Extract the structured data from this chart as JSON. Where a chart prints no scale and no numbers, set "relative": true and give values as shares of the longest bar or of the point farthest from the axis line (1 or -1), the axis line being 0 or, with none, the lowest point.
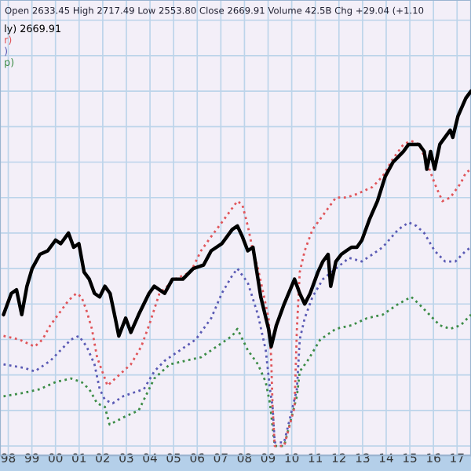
{
  "chart_data": {
    "type": "line",
    "relative": true,
    "annotations": [
      "Open 2633.45 High 2717.49 Low 2553.80 Close 2669.91 Volume 42.5B Chg +29.04 (+1.10"
    ],
    "xlim": [
      1997.65,
      2017.59
    ],
    "xticks": [
      {
        "value": 1998,
        "label": "98"
      },
      {
        "value": 1999,
        "label": "99"
      },
      {
        "value": 2000,
        "label": "00"
      },
      {
        "value": 2001,
        "label": "01"
      },
      {
        "value": 2002,
        "label": "02"
      },
      {
        "value": 2003,
        "label": "03"
      },
      {
        "value": 2004,
        "label": "04"
      },
      {
        "value": 2005,
        "label": "05"
      },
      {
        "value": 2006,
        "label": "06"
      },
      {
        "value": 2007,
        "label": "07"
      },
      {
        "value": 2008,
        "label": "08"
      },
      {
        "value": 2009,
        "label": "09"
      },
      {
        "value": 2010,
        "label": "10"
      },
      {
        "value": 2011,
        "label": "11"
      },
      {
        "value": 2012,
        "label": "12"
      },
      {
        "value": 2013,
        "label": "13"
      },
      {
        "value": 2014,
        "label": "14"
      },
      {
        "value": 2015,
        "label": "15"
      },
      {
        "value": 2016,
        "label": "16"
      },
      {
        "value": 2017,
        "label": "17"
      }
    ],
    "grid": true,
    "legend": "top left",
    "marker": "none",
    "series": [
      {
        "name": "ly) 2669.91",
        "color": "#000000",
        "line_style": "solid",
        "x": [
          1997.8,
          1998.13,
          1998.35,
          1998.57,
          1998.79,
          1999.01,
          1999.34,
          1999.67,
          2000.0,
          2000.22,
          2000.55,
          2000.77,
          2000.99,
          2001.21,
          2001.43,
          2001.65,
          2001.87,
          2002.09,
          2002.31,
          2002.53,
          2002.68,
          2002.97,
          2003.19,
          2003.52,
          2003.96,
          2004.18,
          2004.62,
          2004.95,
          2005.39,
          2005.83,
          2006.27,
          2006.59,
          2007.04,
          2007.48,
          2007.7,
          2007.91,
          2008.14,
          2008.36,
          2008.69,
          2009.02,
          2009.13,
          2009.35,
          2009.68,
          2010.12,
          2010.34,
          2010.55,
          2010.78,
          2011.11,
          2011.32,
          2011.54,
          2011.65,
          2011.87,
          2012.1,
          2012.31,
          2012.53,
          2012.76,
          2012.97,
          2013.3,
          2013.63,
          2013.96,
          2014.29,
          2014.73,
          2014.95,
          2015.17,
          2015.39,
          2015.61,
          2015.72,
          2015.88,
          2016.05,
          2016.27,
          2016.49,
          2016.71,
          2016.82,
          2017.04,
          2017.37,
          2017.59
        ],
        "values": [
          0.37,
          0.43,
          0.44,
          0.37,
          0.45,
          0.5,
          0.54,
          0.55,
          0.58,
          0.57,
          0.6,
          0.56,
          0.57,
          0.49,
          0.47,
          0.43,
          0.42,
          0.45,
          0.43,
          0.36,
          0.31,
          0.36,
          0.32,
          0.37,
          0.43,
          0.45,
          0.43,
          0.47,
          0.47,
          0.5,
          0.51,
          0.55,
          0.57,
          0.61,
          0.62,
          0.59,
          0.55,
          0.56,
          0.42,
          0.33,
          0.28,
          0.34,
          0.4,
          0.47,
          0.43,
          0.4,
          0.43,
          0.49,
          0.52,
          0.54,
          0.45,
          0.52,
          0.54,
          0.55,
          0.56,
          0.56,
          0.58,
          0.64,
          0.69,
          0.76,
          0.8,
          0.83,
          0.85,
          0.85,
          0.85,
          0.83,
          0.78,
          0.83,
          0.78,
          0.85,
          0.87,
          0.89,
          0.87,
          0.93,
          0.98,
          1
        ]
      },
      {
        "name": "r)",
        "color": "#e0555a",
        "line_style": "dotted",
        "x": [
          1997.8,
          1998.46,
          1999.12,
          1999.45,
          1999.78,
          2000.22,
          2000.55,
          2000.88,
          2001.1,
          2001.32,
          2001.54,
          2001.76,
          2001.98,
          2002.2,
          2002.53,
          2002.86,
          2003.19,
          2003.63,
          2003.96,
          2004.4,
          2005.06,
          2005.72,
          2006.16,
          2006.59,
          2007.04,
          2007.48,
          2007.7,
          2007.91,
          2008.14,
          2008.36,
          2008.57,
          2008.8,
          2009.02,
          2009.13,
          2009.19,
          2009.28,
          2009.68,
          2010.12,
          2010.22,
          2010.34,
          2010.55,
          2010.88,
          2011.21,
          2011.54,
          2011.87,
          2012.31,
          2012.76,
          2013.42,
          2013.85,
          2014.29,
          2014.73,
          2015.06,
          2015.39,
          2015.72,
          2016.05,
          2016.38,
          2016.71,
          2017.15,
          2017.37,
          2017.59
        ],
        "values": [
          0.31,
          0.3,
          0.28,
          0.3,
          0.34,
          0.38,
          0.41,
          0.43,
          0.42,
          0.38,
          0.33,
          0.25,
          0.21,
          0.17,
          0.19,
          0.21,
          0.23,
          0.28,
          0.34,
          0.43,
          0.47,
          0.49,
          0.55,
          0.59,
          0.63,
          0.67,
          0.69,
          0.68,
          0.62,
          0.55,
          0.5,
          0.43,
          0.36,
          0.25,
          0.11,
          0.0,
          0.0,
          0.11,
          0.33,
          0.49,
          0.55,
          0.61,
          0.64,
          0.67,
          0.7,
          0.7,
          0.71,
          0.73,
          0.76,
          0.81,
          0.85,
          0.86,
          0.85,
          0.8,
          0.74,
          0.69,
          0.7,
          0.74,
          0.77,
          0.78
        ]
      },
      {
        "name": ")",
        "color": "#5a5ab4",
        "line_style": "dotted",
        "x": [
          1997.8,
          1998.68,
          1999.12,
          1999.78,
          2000.22,
          2000.66,
          2000.99,
          2001.32,
          2001.65,
          2001.87,
          2002.09,
          2002.42,
          2002.86,
          2003.3,
          2003.74,
          2004.18,
          2004.62,
          2005.28,
          2005.94,
          2006.59,
          2007.04,
          2007.48,
          2007.7,
          2008.14,
          2008.57,
          2008.9,
          2009.08,
          2009.19,
          2009.28,
          2009.68,
          2010.22,
          2010.34,
          2010.55,
          2010.88,
          2011.32,
          2011.87,
          2012.43,
          2012.97,
          2013.42,
          2013.85,
          2014.51,
          2014.95,
          2015.28,
          2015.61,
          2016.05,
          2016.49,
          2016.93,
          2017.37,
          2017.59
        ],
        "values": [
          0.23,
          0.22,
          0.21,
          0.24,
          0.27,
          0.3,
          0.31,
          0.28,
          0.23,
          0.16,
          0.13,
          0.12,
          0.14,
          0.15,
          0.16,
          0.21,
          0.24,
          0.27,
          0.3,
          0.36,
          0.43,
          0.48,
          0.5,
          0.46,
          0.37,
          0.27,
          0.16,
          0.11,
          0.01,
          0.01,
          0.16,
          0.3,
          0.36,
          0.42,
          0.47,
          0.5,
          0.53,
          0.52,
          0.54,
          0.56,
          0.61,
          0.63,
          0.62,
          0.6,
          0.55,
          0.52,
          0.52,
          0.55,
          0.56
        ]
      },
      {
        "name": "p)",
        "color": "#3c8c46",
        "line_style": "dotted",
        "x": [
          1997.8,
          1998.68,
          1999.34,
          2000.0,
          2000.66,
          2001.1,
          2001.43,
          2001.76,
          2002.09,
          2002.29,
          2002.86,
          2003.52,
          2004.18,
          2004.84,
          2005.5,
          2006.16,
          2006.82,
          2007.48,
          2007.7,
          2008.14,
          2008.57,
          2008.9,
          2009.08,
          2009.28,
          2009.68,
          2010.22,
          2010.34,
          2010.67,
          2011.21,
          2011.87,
          2012.53,
          2013.19,
          2013.85,
          2014.51,
          2015.06,
          2015.39,
          2015.83,
          2016.27,
          2016.71,
          2017.15,
          2017.59
        ],
        "values": [
          0.14,
          0.15,
          0.16,
          0.18,
          0.19,
          0.18,
          0.16,
          0.12,
          0.11,
          0.06,
          0.08,
          0.1,
          0.19,
          0.23,
          0.24,
          0.25,
          0.28,
          0.31,
          0.33,
          0.27,
          0.23,
          0.18,
          0.12,
          0.0,
          0.0,
          0.14,
          0.21,
          0.24,
          0.3,
          0.33,
          0.34,
          0.36,
          0.37,
          0.4,
          0.42,
          0.4,
          0.37,
          0.34,
          0.33,
          0.34,
          0.37
        ]
      }
    ]
  }
}
